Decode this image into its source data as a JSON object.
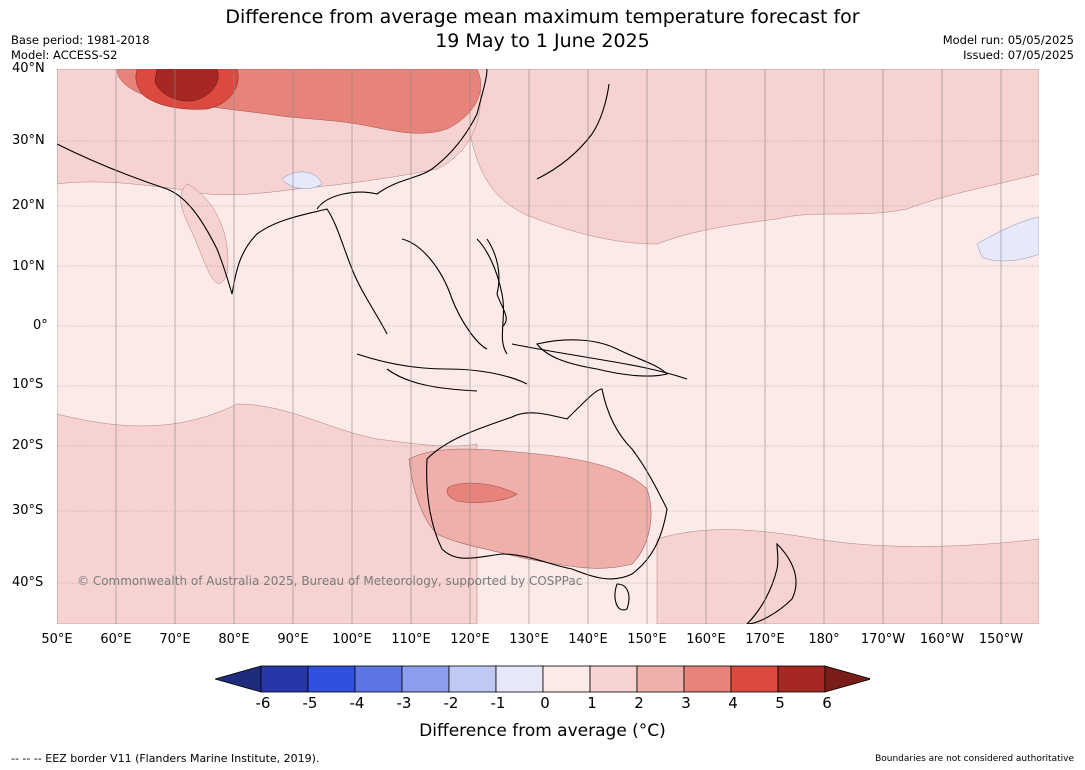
{
  "header": {
    "title_line1": "Difference from average mean maximum temperature forecast for",
    "title_line2": "19 May to 1 June 2025",
    "base_period": "Base period: 1981-2018",
    "model": "Model: ACCESS-S2",
    "model_run": "Model run: 05/05/2025",
    "issued": "Issued: 07/05/2025"
  },
  "map": {
    "lat_labels": [
      "40°N",
      "30°N",
      "20°N",
      "10°N",
      "0°",
      "10°S",
      "20°S",
      "30°S",
      "40°S"
    ],
    "lon_labels": [
      "50°E",
      "60°E",
      "70°E",
      "80°E",
      "90°E",
      "100°E",
      "110°E",
      "120°E",
      "130°E",
      "140°E",
      "150°E",
      "160°E",
      "170°E",
      "180°",
      "170°W",
      "160°W",
      "150°W"
    ],
    "copyright": "© Commonwealth of Australia 2025, Bureau of Meteorology, supported by COSPPac",
    "ocean_background_color": "#fbeae8",
    "regions": [
      {
        "name": "Central Asia (Tibet/Pakistan)",
        "value_class": "5 to 6",
        "color": "#a52822"
      },
      {
        "name": "Northern China",
        "value_class": "3 to 4",
        "color": "#e8837b"
      },
      {
        "name": "Western Australia interior",
        "value_class": "3 to 4",
        "color": "#e8837b"
      },
      {
        "name": "Australia interior",
        "value_class": "2 to 3",
        "color": "#efb0ab"
      },
      {
        "name": "North Pacific",
        "value_class": "1 to 2",
        "color": "#f6d3d0"
      },
      {
        "name": "Central Pacific",
        "value_class": "-1 to 0",
        "color": "#e7e9fa"
      }
    ]
  },
  "colorbar": {
    "ticks": [
      "-6",
      "-5",
      "-4",
      "-3",
      "-2",
      "-1",
      "0",
      "1",
      "2",
      "3",
      "4",
      "5",
      "6"
    ],
    "colors": [
      "#1f2c7e",
      "#2737a8",
      "#3050e0",
      "#5d76e4",
      "#8c9ded",
      "#c0c8f4",
      "#e7e9fa",
      "#fbeae8",
      "#f6d3d0",
      "#efb0ab",
      "#e8837b",
      "#dc4a3f",
      "#a52822",
      "#781d18"
    ],
    "label": "Difference from average (°C)"
  },
  "footer": {
    "eez": "--  --  -- EEZ border V11 (Flanders Marine Institute, 2019).",
    "disclaimer": "Boundaries are not considered authoritative"
  }
}
